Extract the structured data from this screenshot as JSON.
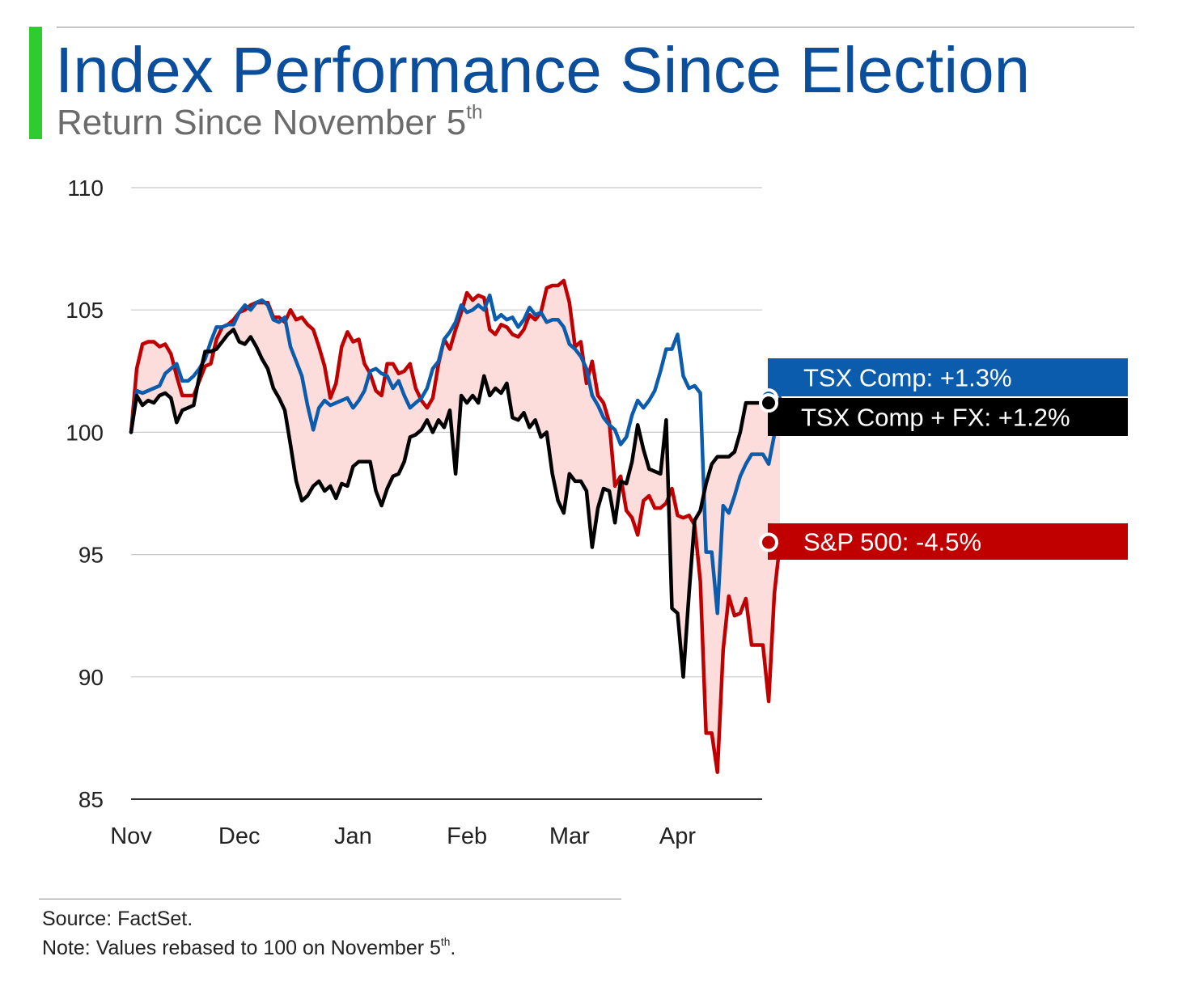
{
  "header": {
    "title": "Index Performance Since Election",
    "subtitle": "Return Since November 5",
    "subtitle_suffix": "th",
    "accent_color": "#2ecc2e",
    "title_color": "#0b4f9c"
  },
  "footer": {
    "source": "Source: FactSet.",
    "note": "Note: Values rebased to 100 on November 5",
    "note_suffix": "th",
    "note_end": "."
  },
  "chart_data": {
    "type": "line",
    "ylim": [
      85,
      110
    ],
    "yticks": [
      110,
      105,
      100,
      95,
      90,
      85
    ],
    "x_labels": [
      "Nov",
      "Dec",
      "Jan",
      "Feb",
      "Mar",
      "Apr"
    ],
    "x_label_positions": [
      0,
      19,
      39,
      59,
      77,
      96
    ],
    "x_domain": [
      0,
      110
    ],
    "grid": true,
    "fill_between": {
      "series_a": "S&P 500",
      "series_b": "TSX Comp + FX",
      "color": "#fddcdc"
    },
    "series": [
      {
        "name": "S&P 500",
        "label": "S&P 500: -4.5%",
        "color": "#c00000",
        "values": [
          100,
          102.6,
          103.6,
          103.7,
          103.7,
          103.5,
          103.6,
          103.2,
          102.3,
          101.5,
          101.5,
          101.5,
          102.1,
          102.7,
          102.8,
          103.8,
          104.3,
          104.4,
          104.6,
          104.9,
          105.0,
          105.2,
          105.3,
          105.3,
          105.3,
          104.7,
          104.7,
          104.5,
          105.0,
          104.6,
          104.7,
          104.4,
          104.2,
          103.5,
          102.7,
          101.4,
          102.0,
          103.5,
          104.1,
          103.7,
          103.8,
          102.8,
          102.4,
          101.7,
          101.5,
          102.8,
          102.8,
          102.4,
          102.5,
          102.8,
          101.8,
          101.3,
          101.0,
          101.4,
          102.8,
          103.8,
          103.4,
          104.2,
          104.9,
          105.7,
          105.4,
          105.6,
          105.5,
          104.2,
          104.0,
          104.4,
          104.3,
          104.0,
          103.9,
          104.2,
          104.8,
          104.6,
          104.9,
          105.9,
          106.0,
          106.0,
          106.2,
          105.3,
          103.5,
          103.7,
          102.0,
          102.9,
          101.5,
          101.2,
          100.4,
          97.8,
          98.2,
          96.8,
          96.5,
          95.8,
          97.2,
          97.4,
          96.9,
          96.9,
          97.1,
          97.7,
          96.6,
          96.5,
          96.6,
          96.2,
          93.9,
          87.7,
          87.7,
          86.1,
          91.1,
          93.3,
          92.5,
          92.6,
          93.2,
          91.3,
          91.3,
          91.3,
          89.0,
          93.4,
          95.5
        ]
      },
      {
        "name": "TSX Comp",
        "label": "TSX Comp: +1.3%",
        "color": "#0b5cad",
        "values": [
          100,
          101.7,
          101.6,
          101.7,
          101.8,
          101.9,
          102.4,
          102.6,
          102.8,
          102.1,
          102.1,
          102.3,
          102.6,
          103.0,
          103.7,
          104.3,
          104.3,
          104.4,
          104.4,
          104.9,
          105.2,
          105.0,
          105.3,
          105.4,
          105.2,
          104.6,
          104.5,
          104.7,
          103.5,
          102.9,
          102.3,
          101.1,
          100.1,
          101.0,
          101.3,
          101.1,
          101.2,
          101.3,
          101.4,
          101.0,
          101.3,
          101.7,
          102.5,
          102.6,
          102.4,
          102.3,
          101.8,
          102.1,
          101.5,
          101.0,
          101.2,
          101.4,
          101.8,
          102.6,
          102.9,
          103.8,
          104.1,
          104.5,
          105.2,
          104.9,
          105.0,
          105.2,
          105.0,
          105.6,
          104.6,
          104.8,
          104.6,
          104.7,
          104.3,
          104.6,
          105.1,
          104.8,
          104.9,
          104.5,
          104.6,
          104.6,
          104.3,
          103.6,
          103.4,
          103.1,
          102.6,
          101.5,
          101.1,
          100.6,
          100.3,
          100.1,
          99.5,
          99.8,
          100.7,
          101.3,
          101.0,
          101.3,
          101.7,
          102.5,
          103.4,
          103.4,
          104.0,
          102.3,
          101.8,
          101.9,
          101.6,
          95.1,
          95.1,
          92.6,
          97.0,
          96.7,
          97.4,
          98.2,
          98.7,
          99.1,
          99.1,
          99.1,
          98.7,
          99.9,
          101.4
        ]
      },
      {
        "name": "TSX Comp + FX",
        "label": "TSX Comp + FX: +1.2%",
        "color": "#000000",
        "values": [
          100,
          101.5,
          101.1,
          101.3,
          101.2,
          101.5,
          101.6,
          101.4,
          100.4,
          100.9,
          101.0,
          101.1,
          102.3,
          103.3,
          103.3,
          103.4,
          103.7,
          104.0,
          104.2,
          103.7,
          103.6,
          103.9,
          103.5,
          103.0,
          102.6,
          101.8,
          101.4,
          100.9,
          99.5,
          98.0,
          97.2,
          97.4,
          97.8,
          98.0,
          97.6,
          97.8,
          97.3,
          97.9,
          97.8,
          98.6,
          98.8,
          98.8,
          98.8,
          97.6,
          97.0,
          97.7,
          98.2,
          98.3,
          98.8,
          99.8,
          99.9,
          100.1,
          100.5,
          100.0,
          100.5,
          100.2,
          100.9,
          98.3,
          101.5,
          101.2,
          101.5,
          101.2,
          102.3,
          101.5,
          101.8,
          101.6,
          102.0,
          100.6,
          100.5,
          100.8,
          100.2,
          100.5,
          99.8,
          100.0,
          98.3,
          97.2,
          96.7,
          98.3,
          98.0,
          98.0,
          97.6,
          95.3,
          96.9,
          97.7,
          97.6,
          96.3,
          98.0,
          97.9,
          98.8,
          100.3,
          99.3,
          98.5,
          98.4,
          98.3,
          100.5,
          92.8,
          92.6,
          90.0,
          93.4,
          96.4,
          96.8,
          97.9,
          98.7,
          99.0,
          99.0,
          99.0,
          99.2,
          100.0,
          101.2,
          101.2,
          101.2,
          101.2,
          101.2,
          101.2,
          101.2
        ]
      }
    ]
  }
}
